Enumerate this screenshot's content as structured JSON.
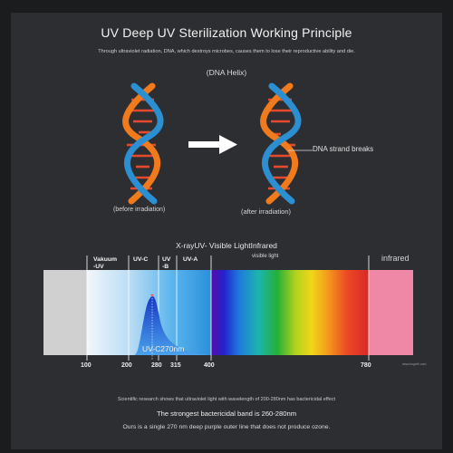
{
  "title": "UV Deep UV Sterilization Working Principle",
  "subtitle": "Through ultraviolet radiation, DNA, which destroys microbes, causes them to lose their reproductive ability and die.",
  "dna": {
    "header": "(DNA Helix)",
    "before_caption": "(before irradiation)",
    "after_caption": "(after irradiation)",
    "break_label": "DNA strand breaks"
  },
  "spectrum": {
    "heading": "X-rayUV- Visible LightInfrared",
    "visible_label": "visible light",
    "infrared_label": "infrared",
    "bands": {
      "vacuum_line1": "Vakuum",
      "vacuum_line2": "-UV",
      "uvc": "UV-C",
      "uvb_line1": "UV",
      "uvb_line2": "-B",
      "uva": "UV-A"
    },
    "peak_label": "UV-C270nm",
    "ticks": [
      "100",
      "200",
      "280",
      "315",
      "400",
      "780"
    ],
    "watermark": "www.kngeth.com"
  },
  "footer": {
    "research": "Scientific research shows that ultraviolet light with wavelength of 200-280nm has bactericidal effect",
    "strongest": "The strongest bactericidal band is 260-280nm",
    "ours": "Ours is a single 270 nm deep purple outer line that does not produce ozone."
  },
  "colors": {
    "background": "#2d2e31",
    "dna_orange": "#f07a1c",
    "dna_blue": "#2b8fd1",
    "arrow": "#ffffff",
    "uv_peak": "#1f4fd6"
  }
}
